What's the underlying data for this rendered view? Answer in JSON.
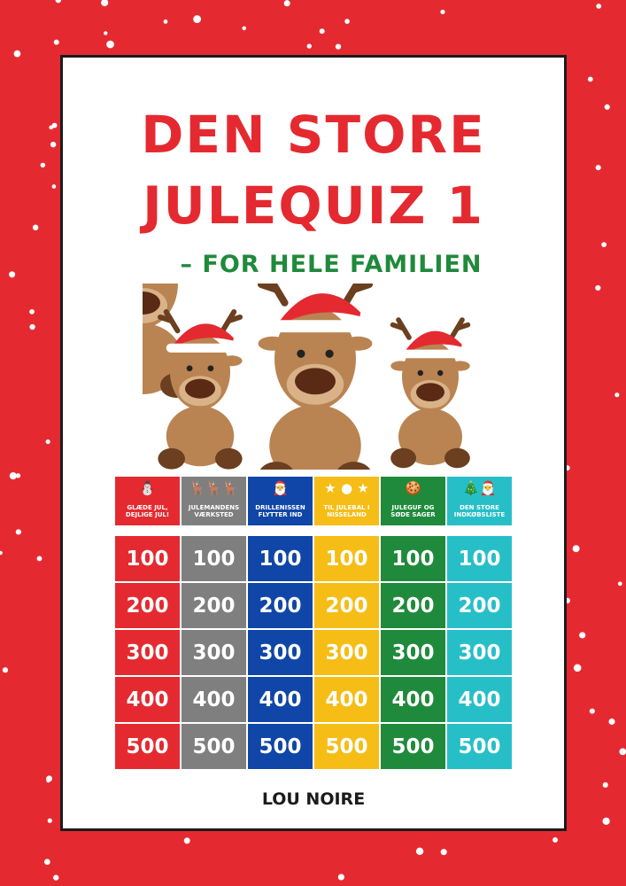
{
  "title_line1": "DEN STORE",
  "title_line2": "JULEQUIZ 1",
  "subtitle": "– FOR HELE FAMILIEN",
  "author": "LOU NOIRE",
  "colors": {
    "background": "#e42a30",
    "title": "#e42a30",
    "subtitle": "#1f8a3b"
  },
  "categories": [
    {
      "label": "GLÆDE JUL, DEJLIGE JUL!",
      "icon": "snowman-icon",
      "glyph": "⛄",
      "color": "#e42a30"
    },
    {
      "label": "JULEMANDENS VÆRKSTED",
      "icon": "reindeer-icon",
      "glyph": "🦌🦌🦌",
      "color": "#7f7f7f"
    },
    {
      "label": "DRILLENISSEN FLYTTER IND",
      "icon": "santa-icon",
      "glyph": "🎅",
      "color": "#1046a8"
    },
    {
      "label": "TIL JULEBAL I NISSELAND",
      "icon": "ornaments-icon",
      "glyph": "★ ● ★",
      "color": "#f5bd16"
    },
    {
      "label": "JULEGUF OG SØDE SAGER",
      "icon": "gingerbread-icon",
      "glyph": "🍪",
      "color": "#1f8a3b"
    },
    {
      "label": "DEN STORE INDKØBSLISTE",
      "icon": "christmas-tree-icon",
      "glyph": "🎄🎅",
      "color": "#27bfc7"
    }
  ],
  "points": [
    "100",
    "200",
    "300",
    "400",
    "500"
  ]
}
